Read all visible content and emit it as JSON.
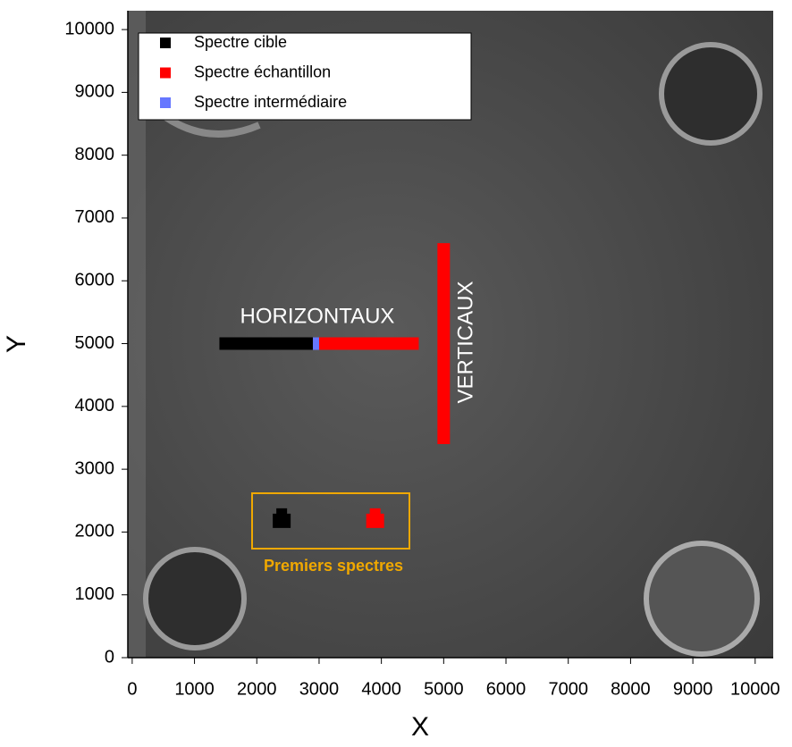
{
  "chart_data": {
    "type": "line",
    "xlabel": "X",
    "ylabel": "Y",
    "xlim": [
      -70,
      10290
    ],
    "ylim": [
      0,
      10300
    ],
    "xticks": [
      0,
      1000,
      2000,
      3000,
      4000,
      5000,
      6000,
      7000,
      8000,
      9000,
      10000
    ],
    "yticks": [
      0,
      1000,
      2000,
      3000,
      4000,
      5000,
      6000,
      7000,
      8000,
      9000,
      10000
    ],
    "legend": "upper left",
    "series": [
      {
        "name": "Spectre cible",
        "color": "#000000",
        "x": [
          1400,
          2900,
          null,
          2400
        ],
        "y": [
          5000,
          5000,
          null,
          2150
        ]
      },
      {
        "name": "Spectre échantillon",
        "color": "#ff0000",
        "x": [
          3000,
          4600,
          null,
          5000,
          5000,
          null,
          3900
        ],
        "y": [
          5000,
          5000,
          null,
          3400,
          6600,
          null,
          2150
        ]
      },
      {
        "name": "Spectre intermédiaire",
        "color": "#6677ff",
        "x": [
          2900,
          3000
        ],
        "y": [
          5000,
          5000
        ]
      }
    ],
    "annotations": [
      "HORIZONTAUX",
      "VERTICAUX",
      "Premiers spectres"
    ]
  }
}
